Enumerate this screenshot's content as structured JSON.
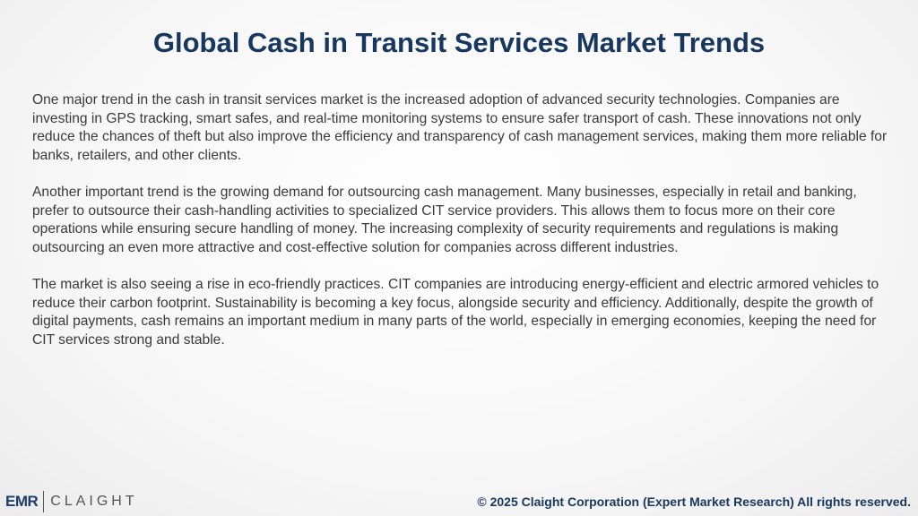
{
  "header": {
    "title": "Global Cash in Transit Services Market Trends"
  },
  "paragraphs": [
    "One major trend in the cash in transit services market is the increased adoption of advanced security technologies. Companies are investing in GPS tracking, smart safes, and real-time monitoring systems to ensure safer transport of cash. These innovations not only reduce the chances of theft but also improve the efficiency and transparency of cash management services, making them more reliable for banks, retailers, and other clients.",
    "Another important trend is the growing demand for outsourcing cash management. Many businesses, especially in retail and banking, prefer to outsource their cash-handling activities to specialized CIT service providers. This allows them to focus more on their core operations while ensuring secure handling of money. The increasing complexity of security requirements and regulations is making outsourcing an even more attractive and cost-effective solution for companies across different industries.",
    "The market is also seeing a rise in eco-friendly practices. CIT companies are introducing energy-efficient and electric armored vehicles to reduce their carbon footprint. Sustainability is becoming a key focus, alongside security and efficiency. Additionally, despite the growth of digital payments, cash remains an important medium in many parts of the world, especially in emerging economies, keeping the need for CIT services strong and stable."
  ],
  "footer": {
    "logo_left": "EMR",
    "logo_right": "CLAIGHT",
    "copyright": "© 2025 Claight Corporation (Expert Market Research) All rights reserved."
  }
}
